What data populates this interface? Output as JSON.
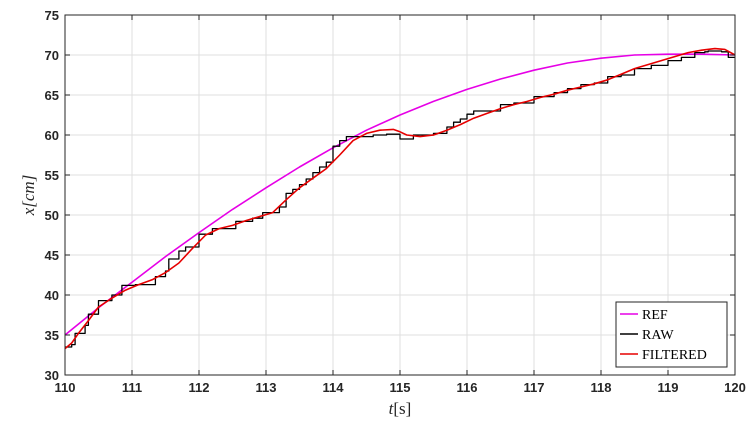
{
  "chart_data": {
    "type": "line",
    "title": "",
    "xlabel_var": "t",
    "xlabel_unit": "[s]",
    "ylabel_var": "x",
    "ylabel_unit": "[cm]",
    "xlim": [
      110,
      120
    ],
    "ylim": [
      30,
      75
    ],
    "xticks": [
      110,
      111,
      112,
      113,
      114,
      115,
      116,
      117,
      118,
      119,
      120
    ],
    "yticks": [
      30,
      35,
      40,
      45,
      50,
      55,
      60,
      65,
      70,
      75
    ],
    "grid": true,
    "legend_position": "bottom-right",
    "series": [
      {
        "name": "REF",
        "color": "#e600e6",
        "step": false,
        "x": [
          110,
          110.5,
          111,
          111.5,
          112,
          112.5,
          113,
          113.5,
          114,
          114.5,
          115,
          115.5,
          116,
          116.5,
          117,
          117.5,
          118,
          118.5,
          119,
          119.5,
          120
        ],
        "y": [
          35.0,
          38.4,
          41.6,
          44.8,
          47.8,
          50.7,
          53.4,
          56.0,
          58.4,
          60.6,
          62.5,
          64.2,
          65.7,
          67.0,
          68.1,
          69.0,
          69.6,
          70.0,
          70.1,
          70.1,
          70.0
        ]
      },
      {
        "name": "RAW",
        "color": "#000000",
        "step": true,
        "x": [
          110,
          110.1,
          110.15,
          110.3,
          110.35,
          110.5,
          110.7,
          110.85,
          111.05,
          111.35,
          111.5,
          111.55,
          111.7,
          111.8,
          112.0,
          112.2,
          112.35,
          112.55,
          112.8,
          112.95,
          113.2,
          113.3,
          113.4,
          113.5,
          113.6,
          113.7,
          113.8,
          113.9,
          114.0,
          114.1,
          114.2,
          114.3,
          114.6,
          114.8,
          115.0,
          115.2,
          115.5,
          115.7,
          115.8,
          115.9,
          116.0,
          116.1,
          116.3,
          116.5,
          116.7,
          117.0,
          117.3,
          117.5,
          117.7,
          117.9,
          118.1,
          118.3,
          118.5,
          118.75,
          119.0,
          119.2,
          119.4,
          119.55,
          119.6,
          119.8,
          119.9
        ],
        "y": [
          33.5,
          33.8,
          35.2,
          36.2,
          37.6,
          39.3,
          40.0,
          41.2,
          41.3,
          42.3,
          43.0,
          44.5,
          45.5,
          46.0,
          47.6,
          48.3,
          48.3,
          49.2,
          49.6,
          50.3,
          51.0,
          52.7,
          53.2,
          53.8,
          54.5,
          55.3,
          56.0,
          56.6,
          58.6,
          59.3,
          59.8,
          59.8,
          60.0,
          60.1,
          59.5,
          60.0,
          60.2,
          61.0,
          61.6,
          62.0,
          62.6,
          63.0,
          63.0,
          63.8,
          64.0,
          64.8,
          65.3,
          65.8,
          66.3,
          66.5,
          67.3,
          67.5,
          68.3,
          68.7,
          69.3,
          69.7,
          70.3,
          70.4,
          70.5,
          70.4,
          69.7
        ]
      },
      {
        "name": "FILTERED",
        "color": "#e60000",
        "step": false,
        "x": [
          110,
          110.1,
          110.2,
          110.35,
          110.5,
          110.7,
          110.9,
          111.1,
          111.3,
          111.5,
          111.7,
          111.9,
          112.1,
          112.3,
          112.5,
          112.7,
          112.9,
          113.1,
          113.3,
          113.5,
          113.7,
          113.9,
          114.1,
          114.3,
          114.5,
          114.7,
          114.9,
          115.0,
          115.1,
          115.3,
          115.5,
          115.7,
          115.9,
          116.1,
          116.3,
          116.5,
          116.7,
          116.9,
          117.1,
          117.3,
          117.5,
          117.7,
          117.9,
          118.1,
          118.3,
          118.5,
          118.7,
          118.9,
          119.1,
          119.3,
          119.5,
          119.7,
          119.85,
          120
        ],
        "y": [
          33.3,
          34.0,
          35.2,
          36.8,
          38.5,
          39.6,
          40.6,
          41.3,
          41.9,
          42.8,
          44.0,
          45.8,
          47.5,
          48.3,
          48.7,
          49.3,
          49.8,
          50.3,
          51.9,
          53.4,
          54.6,
          55.8,
          57.5,
          59.3,
          60.2,
          60.6,
          60.7,
          60.4,
          60.0,
          59.8,
          60.0,
          60.6,
          61.3,
          62.1,
          62.7,
          63.3,
          63.8,
          64.2,
          64.7,
          65.1,
          65.6,
          66.0,
          66.4,
          66.9,
          67.6,
          68.3,
          68.8,
          69.3,
          69.8,
          70.3,
          70.6,
          70.8,
          70.7,
          70.0
        ]
      }
    ]
  }
}
